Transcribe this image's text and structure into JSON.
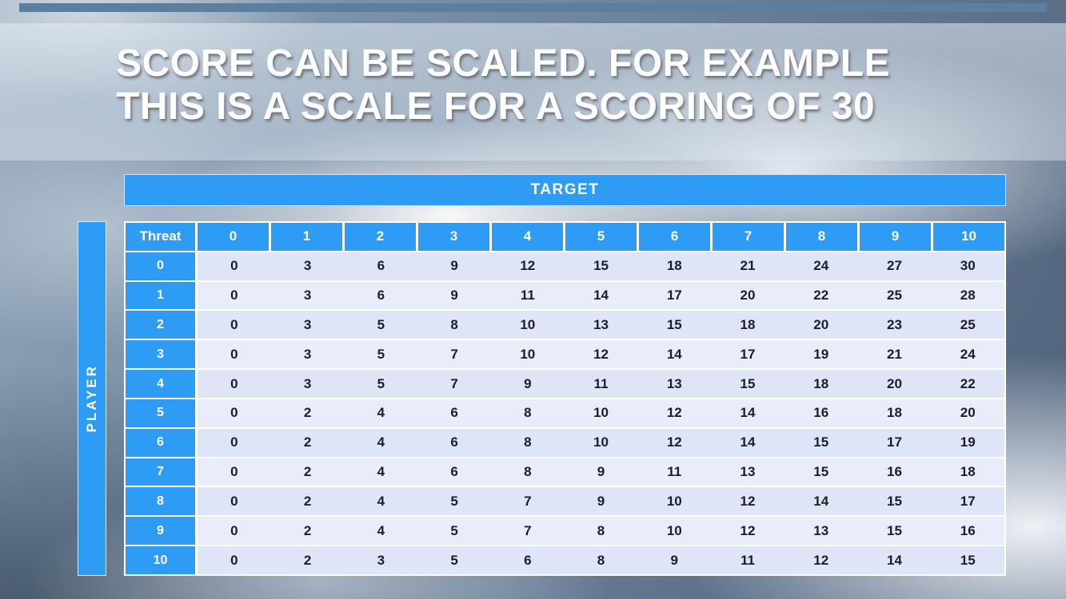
{
  "slide": {
    "title_line1": "SCORE CAN BE SCALED. FOR EXAMPLE",
    "title_line2": "THIS IS A SCALE FOR A SCORING OF 30"
  },
  "table": {
    "target_label": "TARGET",
    "player_label": "PLAYER",
    "corner_label": "Threat",
    "col_headers": [
      "0",
      "1",
      "2",
      "3",
      "4",
      "5",
      "6",
      "7",
      "8",
      "9",
      "10"
    ],
    "row_headers": [
      "0",
      "1",
      "2",
      "3",
      "4",
      "5",
      "6",
      "7",
      "8",
      "9",
      "10"
    ],
    "rows": [
      [
        0,
        3,
        6,
        9,
        12,
        15,
        18,
        21,
        24,
        27,
        30
      ],
      [
        0,
        3,
        6,
        9,
        11,
        14,
        17,
        20,
        22,
        25,
        28
      ],
      [
        0,
        3,
        5,
        8,
        10,
        13,
        15,
        18,
        20,
        23,
        25
      ],
      [
        0,
        3,
        5,
        7,
        10,
        12,
        14,
        17,
        19,
        21,
        24
      ],
      [
        0,
        3,
        5,
        7,
        9,
        11,
        13,
        15,
        18,
        20,
        22
      ],
      [
        0,
        2,
        4,
        6,
        8,
        10,
        12,
        14,
        16,
        18,
        20
      ],
      [
        0,
        2,
        4,
        6,
        8,
        10,
        12,
        14,
        15,
        17,
        19
      ],
      [
        0,
        2,
        4,
        6,
        8,
        9,
        11,
        13,
        15,
        16,
        18
      ],
      [
        0,
        2,
        4,
        5,
        7,
        9,
        10,
        12,
        14,
        15,
        17
      ],
      [
        0,
        2,
        4,
        5,
        7,
        8,
        10,
        12,
        13,
        15,
        16
      ],
      [
        0,
        2,
        3,
        5,
        6,
        8,
        9,
        11,
        12,
        14,
        15
      ]
    ]
  },
  "colors": {
    "header_blue": "#2e9cf4",
    "band_dark": "#dde5f7",
    "band_light": "#e9edfb",
    "top_strip": "#5d7f9e"
  }
}
